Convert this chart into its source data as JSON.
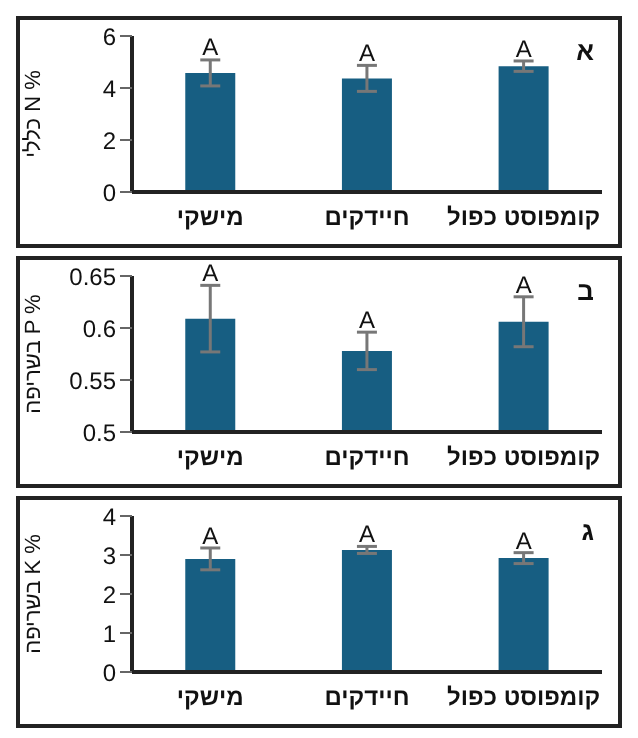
{
  "chart_data": [
    {
      "type": "bar",
      "title": "א",
      "ylabel": "כללי N %",
      "categories": [
        "מישקי",
        "חיידקים",
        "קומפוסט כפול"
      ],
      "values": [
        4.58,
        4.37,
        4.84
      ],
      "errors": [
        0.5,
        0.5,
        0.2
      ],
      "color": "#175e82",
      "ylim": [
        0,
        6
      ],
      "yticks": [
        0,
        2,
        4,
        6
      ],
      "grid": false,
      "annotations": [
        {
          "text": "A",
          "x": "מישקי",
          "y": 5.1
        },
        {
          "text": "A",
          "x": "חיידקים",
          "y": 4.9
        },
        {
          "text": "A",
          "x": "קומפוסט כפול",
          "y": 5.05
        }
      ]
    },
    {
      "type": "bar",
      "title": "ב",
      "ylabel": "בשריפה P %",
      "categories": [
        "מישקי",
        "חיידקים",
        "קומפוסט כפול"
      ],
      "values": [
        0.609,
        0.578,
        0.606
      ],
      "errors": [
        0.032,
        0.018,
        0.024
      ],
      "color": "#175e82",
      "ylim": [
        0.5,
        0.65
      ],
      "yticks": [
        0.5,
        0.55,
        0.6,
        0.65
      ],
      "grid": false,
      "annotations": [
        {
          "text": "A",
          "x": "מישקי",
          "y": 0.641
        },
        {
          "text": "A",
          "x": "חיידקים",
          "y": 0.596
        },
        {
          "text": "A",
          "x": "קומפוסט כפול",
          "y": 0.63
        }
      ]
    },
    {
      "type": "bar",
      "title": "ג",
      "ylabel": "בשריפה K %",
      "categories": [
        "מישקי",
        "חיידקים",
        "קומפוסט כפול"
      ],
      "values": [
        2.9,
        3.13,
        2.92
      ],
      "errors": [
        0.28,
        0.09,
        0.14
      ],
      "color": "#175e82",
      "ylim": [
        0,
        4
      ],
      "yticks": [
        0,
        1,
        2,
        3,
        4
      ],
      "grid": false,
      "annotations": [
        {
          "text": "A",
          "x": "מישקי",
          "y": 3.18
        },
        {
          "text": "A",
          "x": "חיידקים",
          "y": 3.22
        },
        {
          "text": "A",
          "x": "קומפוסט כפול",
          "y": 3.06
        }
      ]
    }
  ]
}
